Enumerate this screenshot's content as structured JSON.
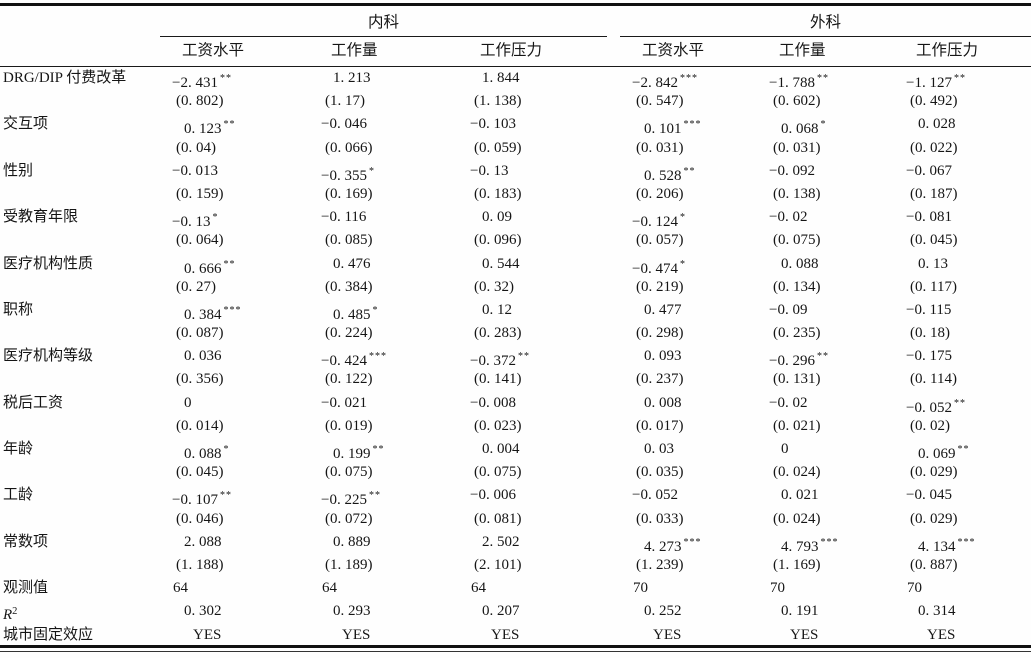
{
  "table": {
    "groups": [
      {
        "label": "内科"
      },
      {
        "label": "外科"
      }
    ],
    "subheaders": [
      "工资水平",
      "工作量",
      "工作压力",
      "工资水平",
      "工作量",
      "工作压力"
    ],
    "variables": [
      {
        "label": "DRG/DIP 付费改革",
        "coefs": [
          {
            "v": "−2. 431",
            "stars": "**"
          },
          {
            "v": "1. 213",
            "stars": ""
          },
          {
            "v": "1. 844",
            "stars": ""
          },
          {
            "v": "−2. 842",
            "stars": "***"
          },
          {
            "v": "−1. 788",
            "stars": "**"
          },
          {
            "v": "−1. 127",
            "stars": "**"
          }
        ],
        "ses": [
          "(0. 802)",
          "(1. 17)",
          "(1. 138)",
          "(0. 547)",
          "(0. 602)",
          "(0. 492)"
        ]
      },
      {
        "label": "交互项",
        "coefs": [
          {
            "v": "0. 123",
            "stars": "**"
          },
          {
            "v": "−0. 046",
            "stars": ""
          },
          {
            "v": "−0. 103",
            "stars": ""
          },
          {
            "v": "0. 101",
            "stars": "***"
          },
          {
            "v": "0. 068",
            "stars": "*"
          },
          {
            "v": "0. 028",
            "stars": ""
          }
        ],
        "ses": [
          "(0. 04)",
          "(0. 066)",
          "(0. 059)",
          "(0. 031)",
          "(0. 031)",
          "(0. 022)"
        ]
      },
      {
        "label": "性别",
        "coefs": [
          {
            "v": "−0. 013",
            "stars": ""
          },
          {
            "v": "−0. 355",
            "stars": "*"
          },
          {
            "v": "−0. 13",
            "stars": ""
          },
          {
            "v": "0. 528",
            "stars": "**"
          },
          {
            "v": "−0. 092",
            "stars": ""
          },
          {
            "v": "−0. 067",
            "stars": ""
          }
        ],
        "ses": [
          "(0. 159)",
          "(0. 169)",
          "(0. 183)",
          "(0. 206)",
          "(0. 138)",
          "(0. 187)"
        ]
      },
      {
        "label": "受教育年限",
        "coefs": [
          {
            "v": "−0. 13",
            "stars": "*"
          },
          {
            "v": "−0. 116",
            "stars": ""
          },
          {
            "v": "0. 09",
            "stars": ""
          },
          {
            "v": "−0. 124",
            "stars": "*"
          },
          {
            "v": "−0. 02",
            "stars": ""
          },
          {
            "v": "−0. 081",
            "stars": ""
          }
        ],
        "ses": [
          "(0. 064)",
          "(0. 085)",
          "(0. 096)",
          "(0. 057)",
          "(0. 075)",
          "(0. 045)"
        ]
      },
      {
        "label": "医疗机构性质",
        "coefs": [
          {
            "v": "0. 666",
            "stars": "**"
          },
          {
            "v": "0. 476",
            "stars": ""
          },
          {
            "v": "0. 544",
            "stars": ""
          },
          {
            "v": "−0. 474",
            "stars": "*"
          },
          {
            "v": "0. 088",
            "stars": ""
          },
          {
            "v": "0. 13",
            "stars": ""
          }
        ],
        "ses": [
          "(0. 27)",
          "(0. 384)",
          "(0. 32)",
          "(0. 219)",
          "(0. 134)",
          "(0. 117)"
        ]
      },
      {
        "label": "职称",
        "coefs": [
          {
            "v": "0. 384",
            "stars": "***"
          },
          {
            "v": "0. 485",
            "stars": "*"
          },
          {
            "v": "0. 12",
            "stars": ""
          },
          {
            "v": "0. 477",
            "stars": ""
          },
          {
            "v": "−0. 09",
            "stars": ""
          },
          {
            "v": "−0. 115",
            "stars": ""
          }
        ],
        "ses": [
          "(0. 087)",
          "(0. 224)",
          "(0. 283)",
          "(0. 298)",
          "(0. 235)",
          "(0. 18)"
        ]
      },
      {
        "label": "医疗机构等级",
        "coefs": [
          {
            "v": "0. 036",
            "stars": ""
          },
          {
            "v": "−0. 424",
            "stars": "***"
          },
          {
            "v": "−0. 372",
            "stars": "**"
          },
          {
            "v": "0. 093",
            "stars": ""
          },
          {
            "v": "−0. 296",
            "stars": "**"
          },
          {
            "v": "−0. 175",
            "stars": ""
          }
        ],
        "ses": [
          "(0. 356)",
          "(0. 122)",
          "(0. 141)",
          "(0. 237)",
          "(0. 131)",
          "(0. 114)"
        ]
      },
      {
        "label": "税后工资",
        "coefs": [
          {
            "v": "0",
            "stars": ""
          },
          {
            "v": "−0. 021",
            "stars": ""
          },
          {
            "v": "−0. 008",
            "stars": ""
          },
          {
            "v": "0. 008",
            "stars": ""
          },
          {
            "v": "−0. 02",
            "stars": ""
          },
          {
            "v": "−0. 052",
            "stars": "**"
          }
        ],
        "ses": [
          "(0. 014)",
          "(0. 019)",
          "(0. 023)",
          "(0. 017)",
          "(0. 021)",
          "(0. 02)"
        ]
      },
      {
        "label": "年龄",
        "coefs": [
          {
            "v": "0. 088",
            "stars": "*"
          },
          {
            "v": "0. 199",
            "stars": "**"
          },
          {
            "v": "0. 004",
            "stars": ""
          },
          {
            "v": "0. 03",
            "stars": ""
          },
          {
            "v": "0",
            "stars": ""
          },
          {
            "v": "0. 069",
            "stars": "**"
          }
        ],
        "ses": [
          "(0. 045)",
          "(0. 075)",
          "(0. 075)",
          "(0. 035)",
          "(0. 024)",
          "(0. 029)"
        ]
      },
      {
        "label": "工龄",
        "coefs": [
          {
            "v": "−0. 107",
            "stars": "**"
          },
          {
            "v": "−0. 225",
            "stars": "**"
          },
          {
            "v": "−0. 006",
            "stars": ""
          },
          {
            "v": "−0. 052",
            "stars": ""
          },
          {
            "v": "0. 021",
            "stars": ""
          },
          {
            "v": "−0. 045",
            "stars": ""
          }
        ],
        "ses": [
          "(0. 046)",
          "(0. 072)",
          "(0. 081)",
          "(0. 033)",
          "(0. 024)",
          "(0. 029)"
        ]
      },
      {
        "label": "常数项",
        "coefs": [
          {
            "v": "2. 088",
            "stars": ""
          },
          {
            "v": "0. 889",
            "stars": ""
          },
          {
            "v": "2. 502",
            "stars": ""
          },
          {
            "v": "4. 273",
            "stars": "***"
          },
          {
            "v": "4. 793",
            "stars": "***"
          },
          {
            "v": "4. 134",
            "stars": "***"
          }
        ],
        "ses": [
          "(1. 188)",
          "(1. 189)",
          "(2. 101)",
          "(1. 239)",
          "(1. 169)",
          "(0. 887)"
        ]
      }
    ],
    "summary": [
      {
        "label": "观测值",
        "align": "obs",
        "values": [
          "64",
          "64",
          "64",
          "70",
          "70",
          "70"
        ]
      },
      {
        "label": "R",
        "label_sup": "2",
        "label_italic": true,
        "align": "pos",
        "values": [
          "0. 302",
          "0. 293",
          "0. 207",
          "0. 252",
          "0. 191",
          "0. 314"
        ]
      },
      {
        "label": "城市固定效应",
        "align": "yes",
        "values": [
          "YES",
          "YES",
          "YES",
          "YES",
          "YES",
          "YES"
        ]
      }
    ]
  }
}
